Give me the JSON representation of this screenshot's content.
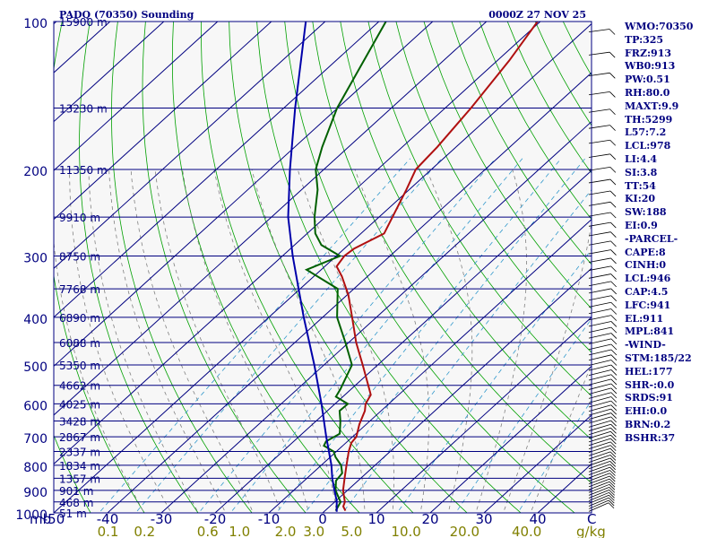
{
  "chart_data": {
    "type": "line",
    "title": "PADQ (70350) Sounding",
    "time_label": "0000Z 27 NOV 25",
    "y_unit_label": "mb",
    "mixing_ratio_unit_label": "g/kg",
    "x_unit_label": "C",
    "pressure_ticks": [
      100,
      200,
      300,
      400,
      500,
      600,
      700,
      800,
      900,
      1000
    ],
    "temperature_ticks": [
      -50,
      -40,
      -30,
      -20,
      -10,
      0,
      10,
      20,
      30,
      40
    ],
    "mixing_ratio_labels": [
      "0.1",
      "0.2",
      "0.6",
      "1.0",
      "2.0",
      "3.0",
      "5.0",
      "10.0",
      "20.0",
      "40.0"
    ],
    "height_labels": [
      {
        "p": 100,
        "label": "15900 m"
      },
      {
        "p": 150,
        "label": "13230 m"
      },
      {
        "p": 200,
        "label": "11350 m"
      },
      {
        "p": 250,
        "label": "9910 m"
      },
      {
        "p": 300,
        "label": "8750 m"
      },
      {
        "p": 350,
        "label": "7768 m"
      },
      {
        "p": 400,
        "label": "6890 m"
      },
      {
        "p": 450,
        "label": "6088 m"
      },
      {
        "p": 500,
        "label": "5350 m"
      },
      {
        "p": 550,
        "label": "4662 m"
      },
      {
        "p": 600,
        "label": "4025 m"
      },
      {
        "p": 650,
        "label": "3428 m"
      },
      {
        "p": 700,
        "label": "2867 m"
      },
      {
        "p": 750,
        "label": "2337 m"
      },
      {
        "p": 800,
        "label": "1834 m"
      },
      {
        "p": 850,
        "label": "1357 m"
      },
      {
        "p": 900,
        "label": "901 m"
      },
      {
        "p": 950,
        "label": "468 m"
      },
      {
        "p": 1000,
        "label": "51 m"
      }
    ],
    "ylim": [
      1000,
      100
    ],
    "xlim": [
      -50,
      50
    ],
    "log_pressure": true,
    "series": [
      {
        "name": "temperature",
        "color": "#b01010",
        "points": [
          {
            "p": 990,
            "t": 3.8
          },
          {
            "p": 970,
            "t": 2.5
          },
          {
            "p": 950,
            "t": 1.9
          },
          {
            "p": 900,
            "t": -0.8
          },
          {
            "p": 850,
            "t": -3.0
          },
          {
            "p": 800,
            "t": -5.3
          },
          {
            "p": 750,
            "t": -7.7
          },
          {
            "p": 720,
            "t": -9.0
          },
          {
            "p": 700,
            "t": -9.3
          },
          {
            "p": 660,
            "t": -11.3
          },
          {
            "p": 620,
            "t": -13.0
          },
          {
            "p": 600,
            "t": -14.3
          },
          {
            "p": 575,
            "t": -15.2
          },
          {
            "p": 550,
            "t": -17.6
          },
          {
            "p": 500,
            "t": -22.8
          },
          {
            "p": 450,
            "t": -28.6
          },
          {
            "p": 400,
            "t": -34.5
          },
          {
            "p": 360,
            "t": -39.8
          },
          {
            "p": 330,
            "t": -44.8
          },
          {
            "p": 315,
            "t": -47.8
          },
          {
            "p": 300,
            "t": -48.5
          },
          {
            "p": 290,
            "t": -48.2
          },
          {
            "p": 270,
            "t": -45.7
          },
          {
            "p": 250,
            "t": -47.5
          },
          {
            "p": 220,
            "t": -50.5
          },
          {
            "p": 200,
            "t": -52.9
          },
          {
            "p": 180,
            "t": -53.5
          },
          {
            "p": 150,
            "t": -55.2
          },
          {
            "p": 120,
            "t": -57.8
          },
          {
            "p": 100,
            "t": -60.5
          }
        ]
      },
      {
        "name": "dewpoint",
        "color": "#006000",
        "points": [
          {
            "p": 990,
            "t": 2.0
          },
          {
            "p": 950,
            "t": 1.1
          },
          {
            "p": 900,
            "t": -2.2
          },
          {
            "p": 860,
            "t": -4.1
          },
          {
            "p": 830,
            "t": -4.5
          },
          {
            "p": 800,
            "t": -6.3
          },
          {
            "p": 770,
            "t": -9.0
          },
          {
            "p": 750,
            "t": -10.5
          },
          {
            "p": 730,
            "t": -13.5
          },
          {
            "p": 715,
            "t": -14.0
          },
          {
            "p": 690,
            "t": -13.0
          },
          {
            "p": 650,
            "t": -15.5
          },
          {
            "p": 620,
            "t": -17.7
          },
          {
            "p": 600,
            "t": -17.6
          },
          {
            "p": 580,
            "t": -21.3
          },
          {
            "p": 560,
            "t": -22.0
          },
          {
            "p": 500,
            "t": -24.8
          },
          {
            "p": 450,
            "t": -30.6
          },
          {
            "p": 400,
            "t": -37.3
          },
          {
            "p": 350,
            "t": -43.0
          },
          {
            "p": 320,
            "t": -52.7
          },
          {
            "p": 300,
            "t": -49.3
          },
          {
            "p": 285,
            "t": -55.0
          },
          {
            "p": 270,
            "t": -58.5
          },
          {
            "p": 250,
            "t": -62.0
          },
          {
            "p": 220,
            "t": -67.0
          },
          {
            "p": 200,
            "t": -71.5
          },
          {
            "p": 180,
            "t": -74.9
          },
          {
            "p": 150,
            "t": -80.1
          },
          {
            "p": 100,
            "t": -88.7
          }
        ]
      },
      {
        "name": "parcel",
        "color": "#0000aa",
        "points": [
          {
            "p": 995,
            "t": 2.4
          },
          {
            "p": 946,
            "t": 0.2
          },
          {
            "p": 900,
            "t": -2.4
          },
          {
            "p": 850,
            "t": -5.3
          },
          {
            "p": 800,
            "t": -8.1
          },
          {
            "p": 700,
            "t": -14.9
          },
          {
            "p": 600,
            "t": -22.5
          },
          {
            "p": 500,
            "t": -31.8
          },
          {
            "p": 400,
            "t": -43.5
          },
          {
            "p": 300,
            "t": -58.1
          },
          {
            "p": 250,
            "t": -66.9
          },
          {
            "p": 200,
            "t": -76.3
          },
          {
            "p": 150,
            "t": -87.9
          },
          {
            "p": 100,
            "t": -103.6
          }
        ]
      }
    ],
    "indices": [
      "WMO:70350",
      "TP:325",
      "FRZ:913",
      "WB0:913",
      "PW:0.51",
      "RH:80.0",
      "MAXT:9.9",
      "TH:5299",
      "L57:7.2",
      "LCL:978",
      "LI:4.4",
      "SI:3.8",
      "TT:54",
      "KI:20",
      "SW:188",
      "EI:0.9",
      "-PARCEL-",
      "CAPE:8",
      "CINH:0",
      "LCL:946",
      "CAP:4.5",
      "LFC:941",
      "EL:911",
      "MPL:841",
      "-WIND-",
      "STM:185/22",
      "HEL:177",
      "SHR-:0.0",
      "SRDS:91",
      "EHI:0.0",
      "BRN:0.2",
      "BSHR:37"
    ],
    "colors": {
      "isobar": "#000080",
      "isotherm": "#000080",
      "dry_adiabat": "#00a000",
      "moist_adiabat": "#808080",
      "mixing_ratio": "#3399cc",
      "axis_text": "#000080",
      "mixing_ratio_text": "#808000",
      "wind_barb": "#000000",
      "background": "#f7f7f7"
    }
  }
}
